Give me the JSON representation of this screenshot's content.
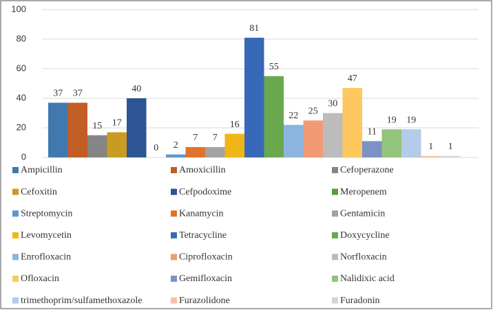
{
  "chart_data": {
    "type": "bar",
    "categories": [
      "Ampicillin",
      "Amoxicillin",
      "Cefoperazone",
      "Cefoxitin",
      "Cefpodoxime",
      "Meropenem",
      "Streptomycin",
      "Kanamycin",
      "Gentamicin",
      "Levomycetin",
      "Tetracycline",
      "Doxycycline",
      "Enrofloxacin",
      "Ciprofloxacin",
      "Norfloxacin",
      "Ofloxacin",
      "Gemifloxacin",
      "Nalidixic acid",
      "trimethoprim/sulfamethoxazole",
      "Furazolidone",
      "Furadonin"
    ],
    "values": [
      37,
      37,
      15,
      17,
      40,
      0,
      2,
      7,
      7,
      16,
      81,
      55,
      22,
      25,
      30,
      47,
      11,
      19,
      19,
      1,
      1
    ],
    "colors": [
      "#4178b0",
      "#c25d26",
      "#858585",
      "#c99b22",
      "#2d5595",
      "#5a9a3c",
      "#5b97cf",
      "#e0732c",
      "#a2a2a2",
      "#f0b616",
      "#3869b8",
      "#6aa84f",
      "#8cb4e0",
      "#f09a76",
      "#bcbcbc",
      "#fec85e",
      "#7b91c8",
      "#93c47d",
      "#b4cbea",
      "#f7c1a8",
      "#d6d6d6"
    ],
    "ylim": [
      0,
      100
    ],
    "yticks": [
      0,
      20,
      40,
      60,
      80,
      100
    ],
    "grid": true,
    "legend": "bottom"
  }
}
